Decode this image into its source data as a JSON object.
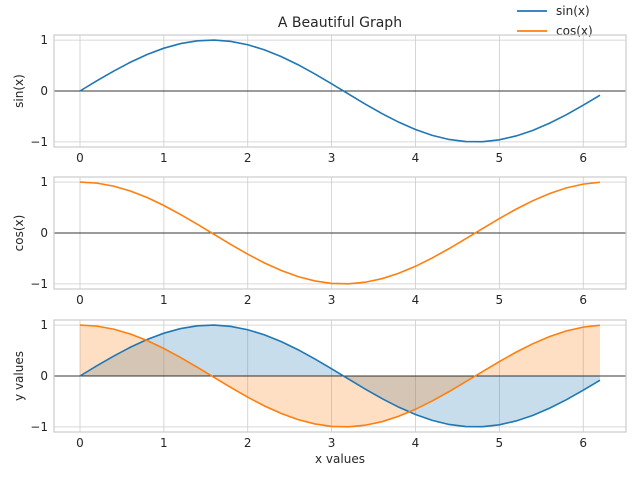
{
  "chart_data": {
    "type": "line",
    "title": "A Beautiful Graph",
    "xlabel": "x values",
    "legend": {
      "placement": "upper-right",
      "entries": [
        {
          "name": "sin(x)",
          "color": "#1f77b4"
        },
        {
          "name": "cos(x)",
          "color": "#ff7f0e"
        }
      ]
    },
    "xlim": [
      -0.31,
      6.51
    ],
    "x_ticks": [
      0,
      1,
      2,
      3,
      4,
      5,
      6
    ],
    "x_tick_labels": [
      "0",
      "1",
      "2",
      "3",
      "4",
      "5",
      "6"
    ],
    "x": [
      0.0,
      0.2,
      0.4,
      0.6,
      0.8,
      1.0,
      1.2,
      1.4,
      1.6,
      1.8,
      2.0,
      2.2,
      2.4,
      2.6,
      2.8,
      3.0,
      3.2,
      3.4,
      3.6,
      3.8,
      4.0,
      4.2,
      4.4,
      4.6,
      4.8,
      5.0,
      5.2,
      5.4,
      5.6,
      5.8,
      6.0,
      6.2
    ],
    "series": [
      {
        "name": "sin(x)",
        "color": "#1f77b4",
        "values": [
          0.0,
          0.199,
          0.389,
          0.565,
          0.717,
          0.841,
          0.932,
          0.985,
          1.0,
          0.974,
          0.909,
          0.808,
          0.675,
          0.516,
          0.335,
          0.141,
          -0.058,
          -0.256,
          -0.443,
          -0.612,
          -0.757,
          -0.872,
          -0.952,
          -0.994,
          -0.996,
          -0.959,
          -0.883,
          -0.773,
          -0.631,
          -0.465,
          -0.279,
          -0.083
        ]
      },
      {
        "name": "cos(x)",
        "color": "#ff7f0e",
        "values": [
          1.0,
          0.98,
          0.921,
          0.825,
          0.697,
          0.54,
          0.362,
          0.17,
          -0.029,
          -0.227,
          -0.416,
          -0.589,
          -0.737,
          -0.857,
          -0.942,
          -0.99,
          -0.998,
          -0.967,
          -0.897,
          -0.791,
          -0.654,
          -0.49,
          -0.307,
          -0.112,
          0.087,
          0.284,
          0.469,
          0.635,
          0.776,
          0.886,
          0.96,
          0.997
        ]
      }
    ],
    "grid": true,
    "subplots": [
      {
        "ylabel": "sin(x)",
        "series": [
          "sin(x)"
        ],
        "fill": false,
        "ylim": [
          -1.1,
          1.1
        ],
        "y_ticks": [
          -1,
          0,
          1
        ],
        "y_tick_labels": [
          "−1",
          "0",
          "1"
        ],
        "show_xlabel": false
      },
      {
        "ylabel": "cos(x)",
        "series": [
          "cos(x)"
        ],
        "fill": false,
        "ylim": [
          -1.1,
          1.1
        ],
        "y_ticks": [
          -1,
          0,
          1
        ],
        "y_tick_labels": [
          "−1",
          "0",
          "1"
        ],
        "show_xlabel": false
      },
      {
        "ylabel": "y values",
        "series": [
          "sin(x)",
          "cos(x)"
        ],
        "fill": true,
        "ylim": [
          -1.1,
          1.1
        ],
        "y_ticks": [
          -1,
          0,
          1
        ],
        "y_tick_labels": [
          "−1",
          "0",
          "1"
        ],
        "show_xlabel": true
      }
    ]
  }
}
